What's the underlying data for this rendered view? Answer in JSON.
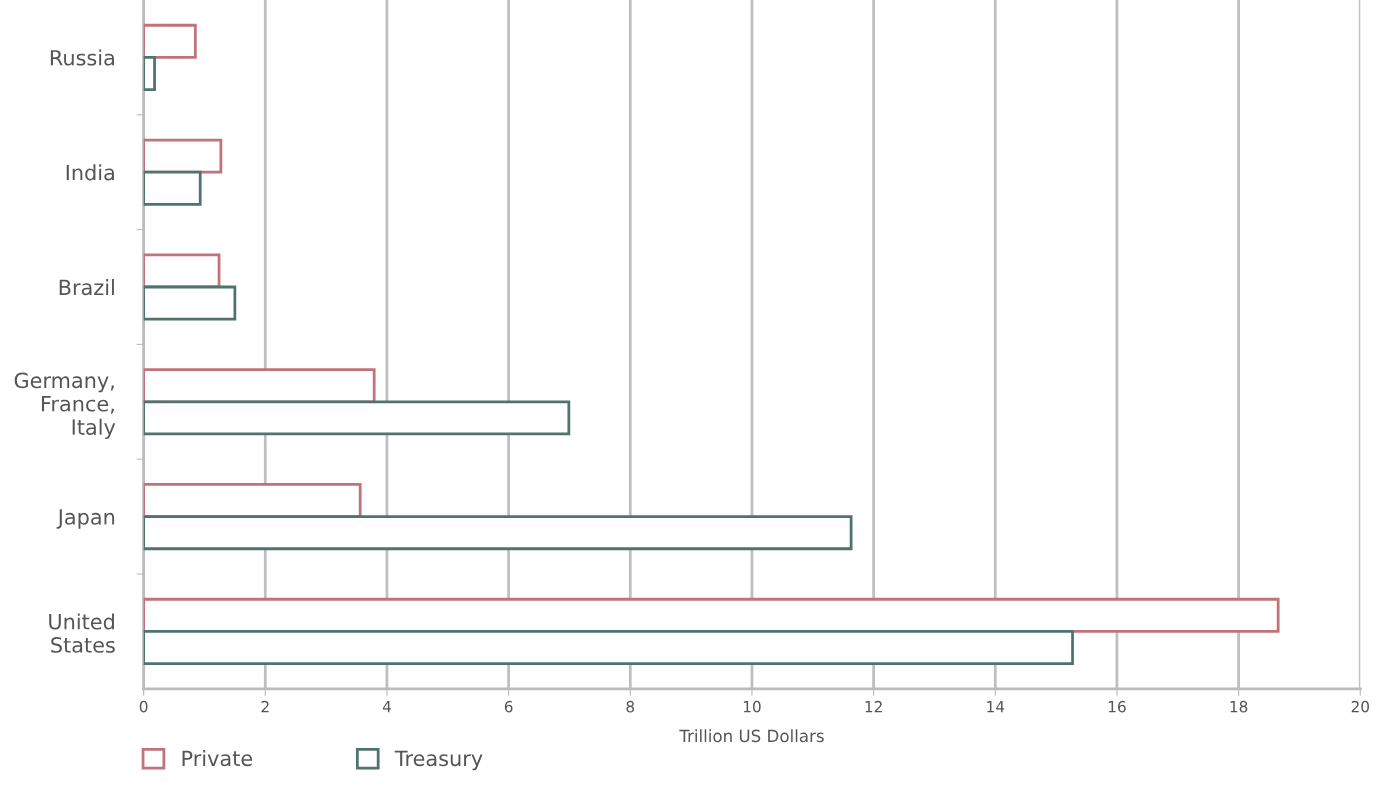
{
  "chart_data": {
    "type": "bar",
    "orientation": "horizontal",
    "categories": [
      "Russia",
      "India",
      "Brazil",
      "Germany,\nFrance,\nItaly",
      "Japan",
      "United\nStates"
    ],
    "series": [
      {
        "name": "Private",
        "color": "#c0737a",
        "values": [
          0.85,
          1.27,
          1.24,
          3.79,
          3.56,
          18.65
        ]
      },
      {
        "name": "Treasury",
        "color": "#4f7470",
        "values": [
          0.18,
          0.93,
          1.5,
          6.99,
          11.63,
          15.27
        ]
      }
    ],
    "xlabel": "Trillion US Dollars",
    "xlim": [
      0,
      20
    ],
    "xticks": [
      0,
      2,
      4,
      6,
      8,
      10,
      12,
      14,
      16,
      18,
      20
    ],
    "grid": "x",
    "legend": "bottom left"
  }
}
